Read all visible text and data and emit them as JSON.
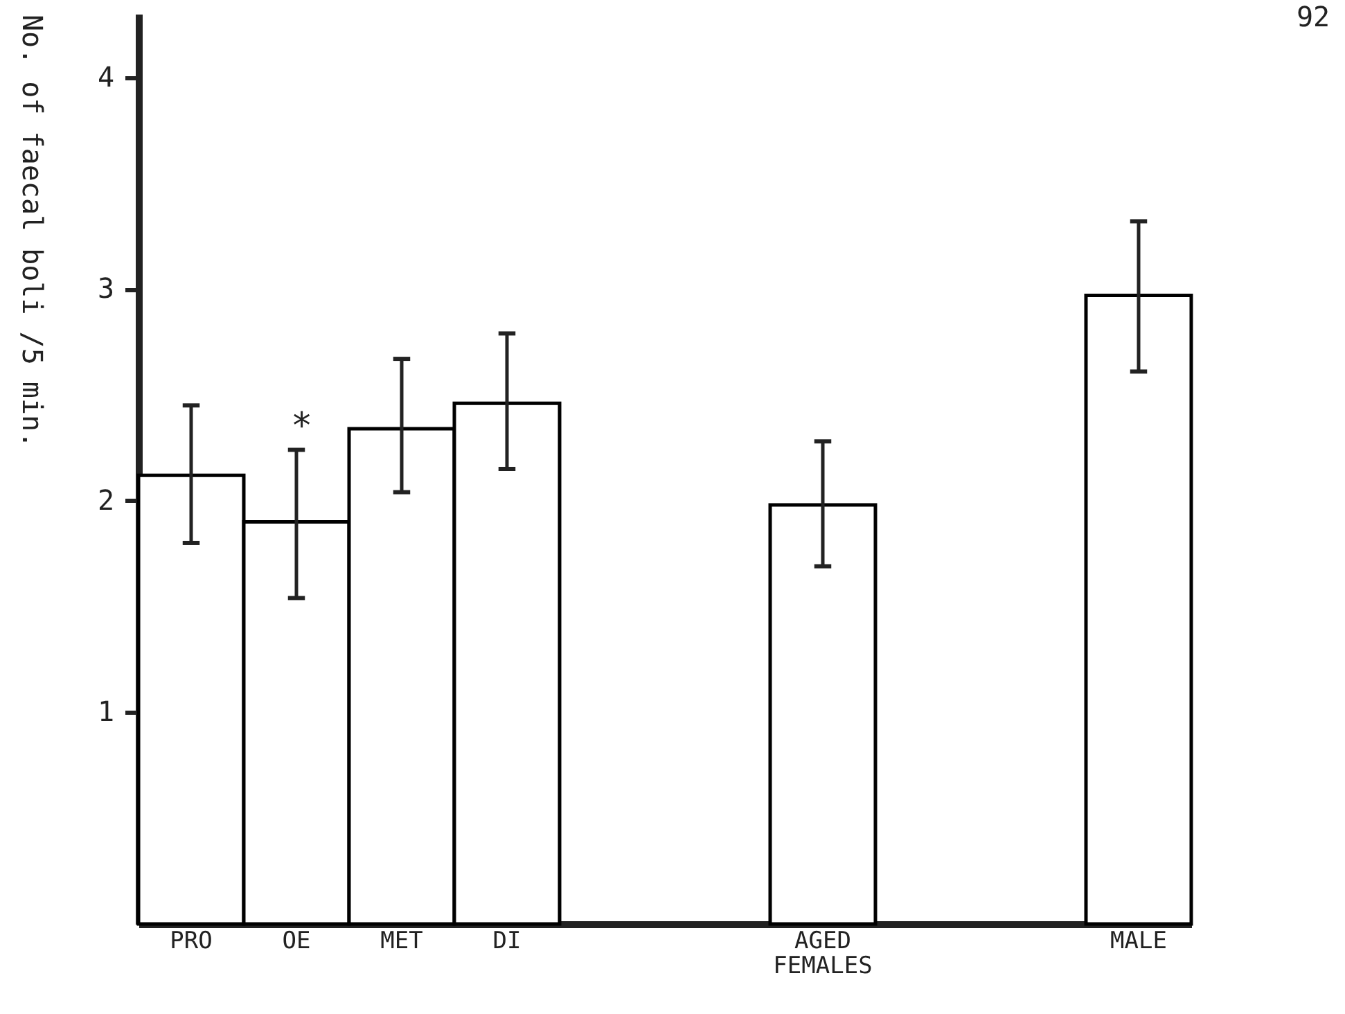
{
  "chart_data": {
    "type": "bar",
    "ylabel": "No. of faecal boli /5 min.",
    "categories": [
      "PRO",
      "OE",
      "MET",
      "DI",
      null,
      null,
      "AGED FEMALES",
      null,
      null,
      "MALE"
    ],
    "series": [
      {
        "color": "#000000",
        "values": [
          2.12,
          1.9,
          2.34,
          2.46,
          null,
          null,
          1.98,
          null,
          null,
          2.97
        ],
        "errors": [
          [
            1.8,
            2.45
          ],
          [
            1.54,
            2.24
          ],
          [
            2.04,
            2.67
          ],
          [
            2.15,
            2.79
          ],
          null,
          null,
          [
            1.69,
            2.28
          ],
          null,
          null,
          [
            2.61,
            3.32
          ]
        ]
      }
    ],
    "ylim": [
      0,
      4.3
    ],
    "yticks": [
      1,
      2,
      3,
      4
    ],
    "grid": false,
    "annotations": [
      "*",
      "92"
    ]
  }
}
